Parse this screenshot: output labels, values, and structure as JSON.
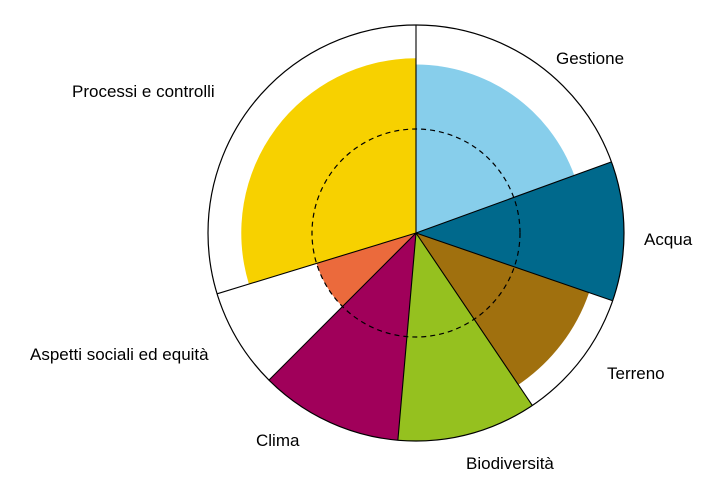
{
  "chart_data": {
    "type": "polar-area",
    "r_max": 1.0,
    "reference_ring": 0.5,
    "segments": [
      {
        "label": "Gestione",
        "value": 0.81,
        "color": "#87CEEB"
      },
      {
        "label": "Acqua",
        "value": 1.0,
        "color": "#00698C"
      },
      {
        "label": "Terreno",
        "value": 0.88,
        "color": "#A0700E"
      },
      {
        "label": "Biodiversità",
        "value": 1.0,
        "color": "#95C11F"
      },
      {
        "label": "Clima",
        "value": 1.0,
        "color": "#A0005A"
      },
      {
        "label": "Aspetti sociali ed equità",
        "value": 0.5,
        "color": "#EB6A3C"
      },
      {
        "label": "Processi e controlli",
        "value": 0.84,
        "color": "#F7D100"
      }
    ],
    "segment_boundaries_deg": [
      0,
      70,
      109,
      146,
      185,
      225,
      253,
      360
    ]
  }
}
